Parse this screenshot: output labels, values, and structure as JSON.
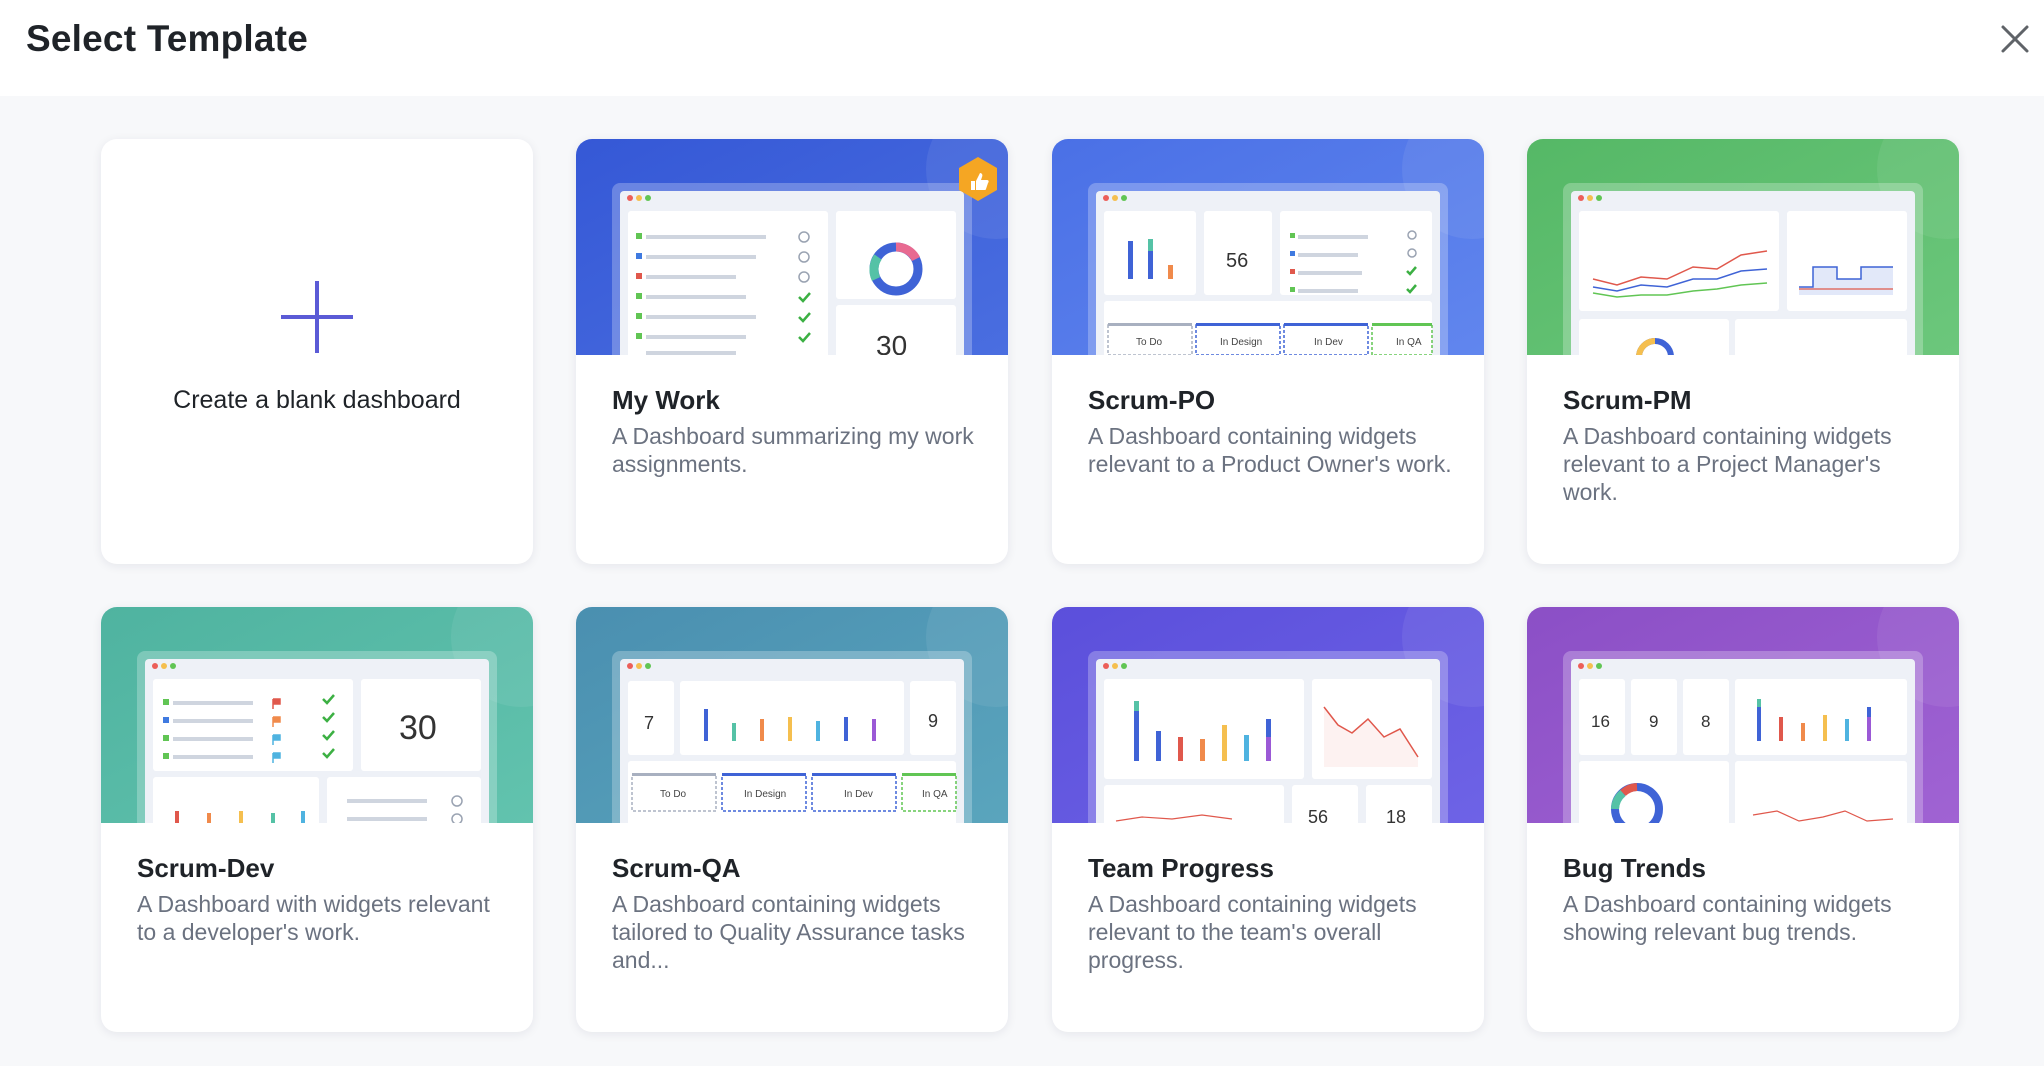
{
  "header": {
    "title": "Select Template",
    "close_icon": "close-icon"
  },
  "blank": {
    "label": "Create a blank dashboard",
    "icon": "plus-icon"
  },
  "templates": [
    {
      "title": "My Work",
      "description": "A Dashboard summarizing my work assignments.",
      "badge": "thumbs-up-icon",
      "stat": "30"
    },
    {
      "title": "Scrum-PO",
      "description": "A Dashboard containing widgets relevant to a Product Owner's work.",
      "stat": "56",
      "columns": [
        "To Do",
        "In Design",
        "In Dev",
        "In QA"
      ]
    },
    {
      "title": "Scrum-PM",
      "description": "A Dashboard containing widgets relevant to a Project Manager's work."
    },
    {
      "title": "Scrum-Dev",
      "description": "A Dashboard with widgets relevant to a developer's work.",
      "stat": "30"
    },
    {
      "title": "Scrum-QA",
      "description": "A Dashboard containing widgets tailored to Quality Assurance tasks and...",
      "stats": [
        "7",
        "9"
      ],
      "columns": [
        "To Do",
        "In Design",
        "In Dev",
        "In QA"
      ]
    },
    {
      "title": "Team Progress",
      "description": "A Dashboard containing widgets relevant to the team's overall progress.",
      "stats": [
        "56",
        "18"
      ]
    },
    {
      "title": "Bug Trends",
      "description": "A Dashboard containing widgets showing relevant bug trends.",
      "stats": [
        "16",
        "9",
        "8"
      ]
    }
  ],
  "colors": {
    "my_work": "#3f63d6",
    "scrum_po": "#5579e8",
    "scrum_pm": "#5cbd70",
    "scrum_dev": "#55b8a4",
    "scrum_qa": "#4f95b0",
    "team_progress": "#6357e0",
    "bug_trends": "#8a4fc4",
    "plus": "#5b5bd6"
  }
}
